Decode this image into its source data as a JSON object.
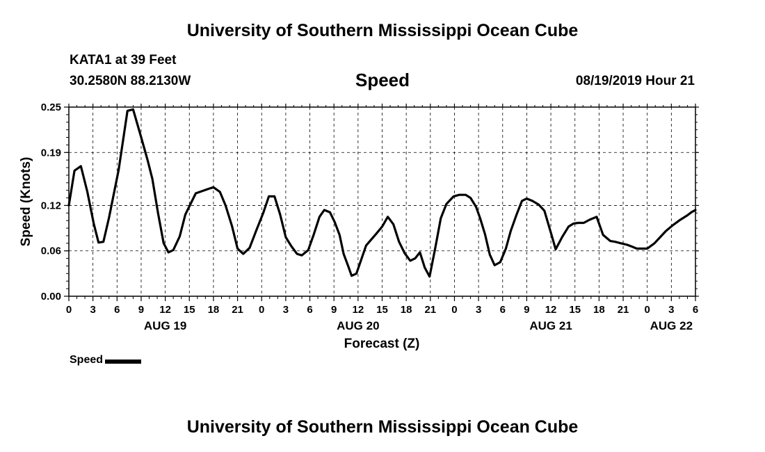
{
  "header": {
    "title_top": "University of Southern Mississippi Ocean Cube",
    "station": "KATA1 at 39 Feet",
    "coords": "30.2580N 88.2130W",
    "chart_title": "Speed",
    "timestamp": "08/19/2019 Hour 21"
  },
  "footer": {
    "title_bottom": "University of Southern Mississippi Ocean Cube"
  },
  "legend": {
    "label": "Speed"
  },
  "chart_data": {
    "type": "line",
    "title": "Speed",
    "xlabel": "Forecast (Z)",
    "ylabel": "Speed (Knots)",
    "ylim": [
      0,
      0.25
    ],
    "xlim": [
      0,
      78
    ],
    "y_ticks": [
      0.0,
      0.06,
      0.12,
      0.19,
      0.25
    ],
    "y_tick_labels": [
      "0.00",
      "0.06",
      "0.12",
      "0.19",
      "0.25"
    ],
    "x_ticks": [
      0,
      3,
      6,
      9,
      12,
      15,
      18,
      21,
      24,
      27,
      30,
      33,
      36,
      39,
      42,
      45,
      48,
      51,
      54,
      57,
      60,
      63,
      66,
      69,
      72,
      75,
      78
    ],
    "x_tick_labels": [
      "0",
      "3",
      "6",
      "9",
      "12",
      "15",
      "18",
      "21",
      "0",
      "3",
      "6",
      "9",
      "12",
      "15",
      "18",
      "21",
      "0",
      "3",
      "6",
      "9",
      "12",
      "15",
      "18",
      "21",
      "0",
      "3",
      "6"
    ],
    "date_labels": [
      {
        "x": 12,
        "label": "AUG 19"
      },
      {
        "x": 36,
        "label": "AUG 20"
      },
      {
        "x": 60,
        "label": "AUG 21"
      },
      {
        "x": 75,
        "label": "AUG 22"
      }
    ],
    "series": [
      {
        "name": "Speed",
        "color": "#000000",
        "x": [
          0,
          0.7,
          1.5,
          2.3,
          3.1,
          3.7,
          4.3,
          5.0,
          6.2,
          7.3,
          8.0,
          9.0,
          9.8,
          10.4,
          11.1,
          11.8,
          12.4,
          13.0,
          13.8,
          14.5,
          15.8,
          17.4,
          18.0,
          18.8,
          19.5,
          20.3,
          21.0,
          21.7,
          22.5,
          23.3,
          24.2,
          24.9,
          25.6,
          26.3,
          27.0,
          27.7,
          28.4,
          29.0,
          29.8,
          30.5,
          31.2,
          31.8,
          32.5,
          33.1,
          33.7,
          34.2,
          34.8,
          35.2,
          35.8,
          37.0,
          38.3,
          39.0,
          39.7,
          40.4,
          41.1,
          41.8,
          42.5,
          43.1,
          43.7,
          44.3,
          44.9,
          45.6,
          46.3,
          47.0,
          47.9,
          48.6,
          49.4,
          50.0,
          50.7,
          51.2,
          51.8,
          52.4,
          53.0,
          53.7,
          54.4,
          55.0,
          55.7,
          56.4,
          57.0,
          57.7,
          58.5,
          59.2,
          60.0,
          60.6,
          61.4,
          62.2,
          62.8,
          63.4,
          64.1,
          64.8,
          65.7,
          66.5,
          67.4,
          68.0,
          68.7,
          69.5,
          70.0,
          70.7,
          72.0,
          72.9,
          73.6,
          74.3,
          75.2,
          76.1,
          77.0,
          77.5,
          78.0
        ],
        "values": [
          0.12,
          0.166,
          0.172,
          0.138,
          0.096,
          0.071,
          0.072,
          0.104,
          0.167,
          0.245,
          0.247,
          0.21,
          0.18,
          0.155,
          0.11,
          0.07,
          0.058,
          0.061,
          0.079,
          0.108,
          0.136,
          0.142,
          0.144,
          0.138,
          0.12,
          0.093,
          0.063,
          0.056,
          0.064,
          0.086,
          0.11,
          0.132,
          0.132,
          0.108,
          0.078,
          0.066,
          0.056,
          0.054,
          0.061,
          0.082,
          0.105,
          0.114,
          0.111,
          0.098,
          0.081,
          0.056,
          0.039,
          0.027,
          0.03,
          0.067,
          0.083,
          0.092,
          0.105,
          0.095,
          0.072,
          0.057,
          0.047,
          0.05,
          0.058,
          0.038,
          0.026,
          0.063,
          0.103,
          0.122,
          0.132,
          0.134,
          0.134,
          0.13,
          0.118,
          0.103,
          0.082,
          0.055,
          0.041,
          0.045,
          0.063,
          0.086,
          0.107,
          0.126,
          0.129,
          0.126,
          0.121,
          0.113,
          0.084,
          0.062,
          0.078,
          0.092,
          0.096,
          0.097,
          0.097,
          0.101,
          0.105,
          0.081,
          0.073,
          0.072,
          0.07,
          0.068,
          0.066,
          0.063,
          0.063,
          0.07,
          0.078,
          0.086,
          0.094,
          0.101,
          0.107,
          0.111,
          0.114
        ]
      }
    ]
  }
}
